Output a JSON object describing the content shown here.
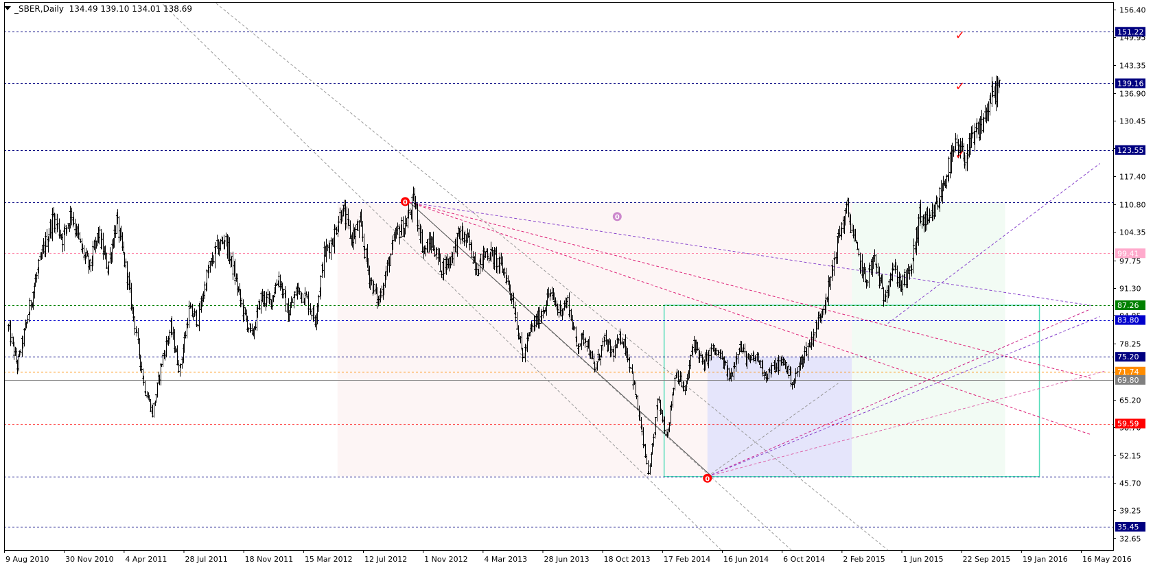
{
  "header": {
    "symbol": "_SBER,Daily",
    "ohlc": "134.49 139.10 134.01 138.69"
  },
  "chart_data": {
    "type": "candlestick",
    "symbol": "_SBER",
    "timeframe": "Daily",
    "x_labels": [
      "9 Aug 2010",
      "30 Nov 2010",
      "4 Apr 2011",
      "28 Jul 2011",
      "18 Nov 2011",
      "15 Mar 2012",
      "12 Jul 2012",
      "1 Nov 2012",
      "4 Mar 2013",
      "28 Jun 2013",
      "18 Oct 2013",
      "17 Feb 2014",
      "16 Jun 2014",
      "6 Oct 2014",
      "2 Feb 2015",
      "1 Jun 2015",
      "22 Sep 2015",
      "19 Jan 2016",
      "16 May 2016"
    ],
    "y_ticks": [
      "156.40",
      "149.95",
      "143.35",
      "136.90",
      "130.45",
      "123.95",
      "117.40",
      "110.80",
      "104.35",
      "97.75",
      "91.30",
      "84.85",
      "78.25",
      "71.75",
      "65.20",
      "58.70",
      "52.15",
      "45.70",
      "39.25",
      "32.65"
    ],
    "ylim": [
      30.0,
      158.0
    ],
    "price_path": [
      [
        0,
        82
      ],
      [
        1,
        73
      ],
      [
        2,
        83
      ],
      [
        3,
        93
      ],
      [
        4,
        101
      ],
      [
        5,
        108
      ],
      [
        6,
        103
      ],
      [
        7,
        109
      ],
      [
        8,
        101
      ],
      [
        9,
        96
      ],
      [
        10,
        104
      ],
      [
        11,
        96
      ],
      [
        12,
        107
      ],
      [
        13,
        96
      ],
      [
        14,
        83
      ],
      [
        15,
        69
      ],
      [
        16,
        62
      ],
      [
        17,
        74
      ],
      [
        18,
        82
      ],
      [
        19,
        72
      ],
      [
        20,
        86
      ],
      [
        21,
        84
      ],
      [
        22,
        94
      ],
      [
        23,
        100
      ],
      [
        24,
        103
      ],
      [
        25,
        95
      ],
      [
        26,
        86
      ],
      [
        27,
        80
      ],
      [
        28,
        89
      ],
      [
        29,
        88
      ],
      [
        30,
        94
      ],
      [
        31,
        85
      ],
      [
        32,
        91
      ],
      [
        33,
        89
      ],
      [
        34,
        84
      ],
      [
        35,
        99
      ],
      [
        36,
        103
      ],
      [
        37,
        110
      ],
      [
        38,
        103
      ],
      [
        39,
        106
      ],
      [
        40,
        94
      ],
      [
        41,
        88
      ],
      [
        42,
        96
      ],
      [
        43,
        104
      ],
      [
        44,
        106
      ],
      [
        45,
        112
      ],
      [
        46,
        100
      ],
      [
        47,
        102
      ],
      [
        48,
        96
      ],
      [
        49,
        98
      ],
      [
        50,
        104
      ],
      [
        51,
        102
      ],
      [
        52,
        96
      ],
      [
        53,
        100
      ],
      [
        54,
        98
      ],
      [
        55,
        95
      ],
      [
        56,
        88
      ],
      [
        57,
        75
      ],
      [
        58,
        82
      ],
      [
        59,
        85
      ],
      [
        60,
        90
      ],
      [
        61,
        86
      ],
      [
        62,
        88
      ],
      [
        63,
        78
      ],
      [
        64,
        80
      ],
      [
        65,
        72
      ],
      [
        66,
        79
      ],
      [
        67,
        76
      ],
      [
        68,
        80
      ],
      [
        69,
        73
      ],
      [
        70,
        60
      ],
      [
        71,
        47
      ],
      [
        72,
        65
      ],
      [
        73,
        57
      ],
      [
        74,
        72
      ],
      [
        75,
        67
      ],
      [
        76,
        79
      ],
      [
        77,
        73
      ],
      [
        78,
        77
      ],
      [
        79,
        75
      ],
      [
        80,
        70
      ],
      [
        81,
        78
      ],
      [
        82,
        74
      ],
      [
        83,
        75
      ],
      [
        84,
        71
      ],
      [
        85,
        73
      ],
      [
        86,
        74
      ],
      [
        87,
        69
      ],
      [
        88,
        75
      ],
      [
        89,
        79
      ],
      [
        90,
        85
      ],
      [
        91,
        92
      ],
      [
        92,
        103
      ],
      [
        93,
        110
      ],
      [
        94,
        100
      ],
      [
        95,
        93
      ],
      [
        96,
        98
      ],
      [
        97,
        89
      ],
      [
        98,
        96
      ],
      [
        99,
        92
      ],
      [
        100,
        95
      ],
      [
        101,
        108
      ],
      [
        102,
        106
      ],
      [
        103,
        111
      ],
      [
        104,
        118
      ],
      [
        105,
        124
      ],
      [
        106,
        122
      ],
      [
        107,
        126
      ],
      [
        108,
        130
      ],
      [
        109,
        136
      ],
      [
        110,
        139.1
      ]
    ],
    "x_index_range": [
      0,
      110
    ],
    "markers": [
      {
        "id": "fractal-high-nov2012",
        "label": "0",
        "color": "#ff0000",
        "at": [
          44,
          111.5
        ]
      },
      {
        "id": "fractal-low-oct2014",
        "label": "0",
        "color": "#ff0000",
        "at": [
          77.5,
          46.8
        ]
      },
      {
        "id": "fractal-purple",
        "label": "0",
        "color": "#cc88cc",
        "at": [
          67.5,
          108.0
        ]
      },
      {
        "id": "check-151",
        "label": "✓",
        "color": "#ff0000",
        "at": [
          105.5,
          150.5
        ]
      },
      {
        "id": "check-139",
        "label": "✓",
        "color": "#ff0000",
        "at": [
          105.5,
          138.5
        ]
      },
      {
        "id": "check-123",
        "label": "✓",
        "color": "#ff0000",
        "at": [
          105.5,
          122.5
        ]
      }
    ],
    "levels": [
      {
        "value": 151.22,
        "label": "151.22",
        "color": "#000080",
        "style": "dash",
        "badge_bg": "#000080",
        "badge_fg": "#ffffff"
      },
      {
        "value": 139.16,
        "label": "139.16",
        "color": "#000080",
        "style": "dash",
        "badge_bg": "#000080",
        "badge_fg": "#ffffff"
      },
      {
        "value": 123.55,
        "label": "123.55",
        "color": "#000080",
        "style": "dash",
        "badge_bg": "#000080",
        "badge_fg": "#ffffff"
      },
      {
        "value": 111.3,
        "label": "",
        "color": "#000080",
        "style": "dash"
      },
      {
        "value": 99.41,
        "label": "99.41",
        "color": "#ff88aa",
        "style": "dash",
        "badge_bg": "#ffaacc",
        "badge_fg": "#ffffff"
      },
      {
        "value": 87.26,
        "label": "87.26",
        "color": "#008000",
        "style": "dash",
        "badge_bg": "#008000",
        "badge_fg": "#ffffff"
      },
      {
        "value": 83.8,
        "label": "83.80",
        "color": "#0000cc",
        "style": "dash",
        "badge_bg": "#0000cc",
        "badge_fg": "#ffffff"
      },
      {
        "value": 75.2,
        "label": "75.20",
        "color": "#000080",
        "style": "dash",
        "badge_bg": "#000080",
        "badge_fg": "#ffffff"
      },
      {
        "value": 71.74,
        "label": "71.74",
        "color": "#ff8c00",
        "style": "dash",
        "badge_bg": "#ff8c00",
        "badge_fg": "#ffffff"
      },
      {
        "value": 69.8,
        "label": "69.80",
        "color": "#808080",
        "style": "solid",
        "badge_bg": "#808080",
        "badge_fg": "#ffffff"
      },
      {
        "value": 59.59,
        "label": "59.59",
        "color": "#ff0000",
        "style": "dash",
        "badge_bg": "#ff0000",
        "badge_fg": "#ffffff"
      },
      {
        "value": 47.2,
        "label": "",
        "color": "#000080",
        "style": "dash"
      },
      {
        "value": 35.45,
        "label": "35.45",
        "color": "#000080",
        "style": "dash",
        "badge_bg": "#000080",
        "badge_fg": "#ffffff"
      }
    ],
    "zones": [
      {
        "id": "zone-pink",
        "x": [
          36.5,
          93.5
        ],
        "y": [
          47.2,
          111.3
        ],
        "fill": "#fdf5f5"
      },
      {
        "id": "zone-green",
        "x": [
          93.5,
          110.5
        ],
        "y": [
          47.2,
          111.3
        ],
        "fill": "#f2fbf4"
      },
      {
        "id": "zone-blue",
        "x": [
          77.5,
          93.5
        ],
        "y": [
          47.2,
          75.2
        ],
        "fill": "#e5e5fb"
      },
      {
        "id": "zone-teal-box",
        "x": [
          72.7,
          114.3
        ],
        "y": [
          47.2,
          87.26
        ],
        "stroke": "#55ddbb"
      }
    ],
    "trendlines": [
      {
        "from": [
          16.0,
          160.0
        ],
        "to": [
          80.0,
          28.0
        ],
        "color": "#999999",
        "dash": "4,3"
      },
      {
        "from": [
          21.8,
          160.0
        ],
        "to": [
          97.5,
          30.0
        ],
        "color": "#999999",
        "dash": "4,3"
      },
      {
        "from": [
          44.5,
          111.3
        ],
        "to": [
          86.8,
          30.0
        ],
        "color": "#999999",
        "dash": "4,3"
      },
      {
        "from": [
          44.5,
          111.3
        ],
        "to": [
          78.0,
          47.2
        ],
        "color": "#555555",
        "dash": ""
      },
      {
        "from": [
          77.5,
          47.2
        ],
        "to": [
          92.0,
          69.0
        ],
        "color": "#999999",
        "dash": "4,3"
      },
      {
        "from": [
          77.5,
          47.2
        ],
        "to": [
          121.5,
          71.8
        ],
        "color": "#dd66aa",
        "dash": "4,3"
      },
      {
        "from": [
          77.5,
          47.2
        ],
        "to": [
          120.0,
          86.4
        ],
        "color": "#cc2288",
        "dash": "4,3"
      },
      {
        "from": [
          44.5,
          111.3
        ],
        "to": [
          120.0,
          87.2
        ],
        "color": "#8844cc",
        "dash": "4,3"
      },
      {
        "from": [
          44.5,
          111.3
        ],
        "to": [
          120.0,
          70.2
        ],
        "color": "#dd2277",
        "dash": "4,3"
      },
      {
        "from": [
          44.5,
          111.3
        ],
        "to": [
          120.0,
          57.0
        ],
        "color": "#dd2277",
        "dash": "4,3"
      },
      {
        "from": [
          77.5,
          47.2
        ],
        "to": [
          121.0,
          84.6
        ],
        "color": "#8844cc",
        "dash": "4,3"
      },
      {
        "from": [
          97.5,
          83.0
        ],
        "to": [
          121.0,
          120.4
        ],
        "color": "#8844cc",
        "dash": "4,3"
      }
    ],
    "grid": false,
    "colors": {
      "candles": "#000000",
      "axis": "#000000",
      "background": "#ffffff"
    }
  }
}
